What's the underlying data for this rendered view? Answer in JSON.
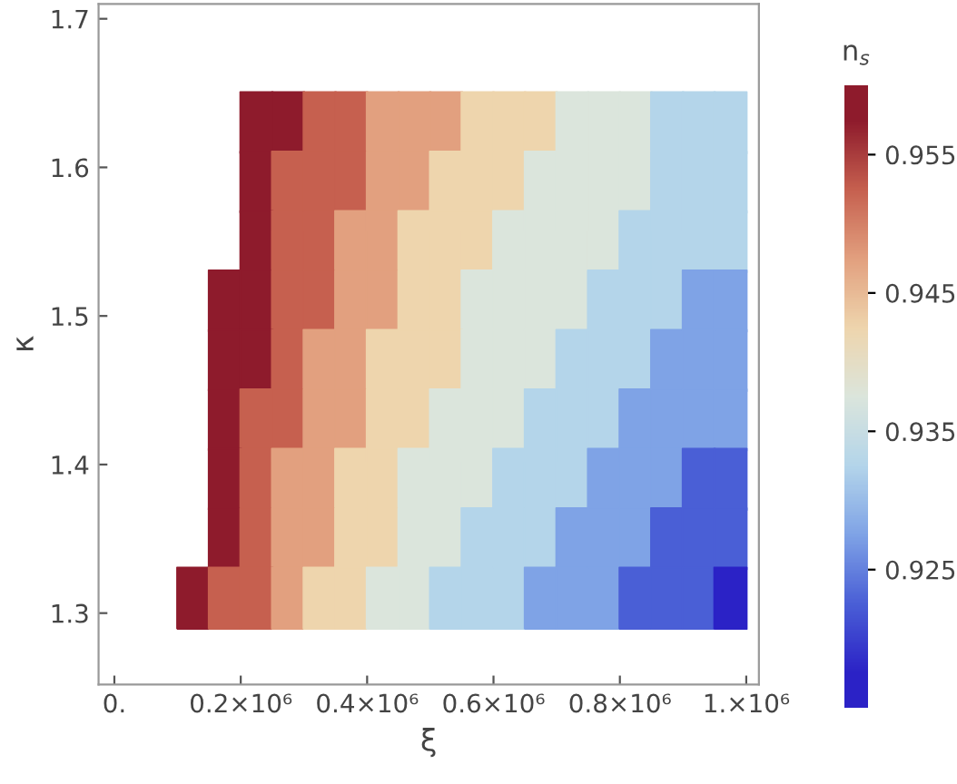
{
  "chart_data": {
    "type": "scatter",
    "marker": "square",
    "xlabel": "ξ",
    "ylabel": "κ",
    "clabel": "n$_{s}$",
    "series": [
      {
        "x": [
          225000,
          275000,
          325000,
          375000,
          425000,
          475000,
          525000,
          575000,
          625000,
          675000,
          725000,
          775000,
          825000,
          875000,
          925000,
          975000
        ],
        "values": [
          1.63,
          1.63,
          1.63,
          1.63,
          1.63,
          1.63,
          1.63,
          1.63,
          1.63,
          1.63,
          1.63,
          1.63,
          1.63,
          1.63,
          1.63,
          1.63
        ],
        "cvalues": [
          0.9575,
          0.9575,
          0.9525,
          0.9525,
          0.9475,
          0.9475,
          0.9475,
          0.9425,
          0.9425,
          0.9425,
          0.9375,
          0.9375,
          0.9375,
          0.9325,
          0.9325,
          0.9325
        ],
        "colors": [
          "#8e1b2c",
          "#8e1b2c",
          "#c6604f",
          "#c6604f",
          "#e2a07f",
          "#e2a07f",
          "#e2a07f",
          "#eed5ad",
          "#eed5ad",
          "#eed5ad",
          "#dbe5dc",
          "#dbe5dc",
          "#dbe5dc",
          "#b4d5ea",
          "#b4d5ea",
          "#b4d5ea"
        ]
      },
      {
        "x": [
          225000,
          275000,
          325000,
          375000,
          425000,
          475000,
          525000,
          575000,
          625000,
          675000,
          725000,
          775000,
          825000,
          875000,
          925000,
          975000
        ],
        "values": [
          1.59,
          1.59,
          1.59,
          1.59,
          1.59,
          1.59,
          1.59,
          1.59,
          1.59,
          1.59,
          1.59,
          1.59,
          1.59,
          1.59,
          1.59,
          1.59
        ],
        "cvalues": [
          0.9575,
          0.9525,
          0.9525,
          0.9525,
          0.9475,
          0.9475,
          0.9425,
          0.9425,
          0.9425,
          0.9375,
          0.9375,
          0.9375,
          0.9375,
          0.9325,
          0.9325,
          0.9325
        ],
        "colors": [
          "#8e1b2c",
          "#c6604f",
          "#c6604f",
          "#c6604f",
          "#e2a07f",
          "#e2a07f",
          "#eed5ad",
          "#eed5ad",
          "#eed5ad",
          "#dbe5dc",
          "#dbe5dc",
          "#dbe5dc",
          "#dbe5dc",
          "#b4d5ea",
          "#b4d5ea",
          "#b4d5ea"
        ]
      },
      {
        "x": [
          225000,
          275000,
          325000,
          375000,
          425000,
          475000,
          525000,
          575000,
          625000,
          675000,
          725000,
          775000,
          825000,
          875000,
          925000,
          975000
        ],
        "values": [
          1.55,
          1.55,
          1.55,
          1.55,
          1.55,
          1.55,
          1.55,
          1.55,
          1.55,
          1.55,
          1.55,
          1.55,
          1.55,
          1.55,
          1.55,
          1.55
        ],
        "cvalues": [
          0.9575,
          0.9525,
          0.9525,
          0.9475,
          0.9475,
          0.9425,
          0.9425,
          0.9425,
          0.9375,
          0.9375,
          0.9375,
          0.9375,
          0.9325,
          0.9325,
          0.9325,
          0.9325
        ],
        "colors": [
          "#8e1b2c",
          "#c6604f",
          "#c6604f",
          "#e2a07f",
          "#e2a07f",
          "#eed5ad",
          "#eed5ad",
          "#eed5ad",
          "#dbe5dc",
          "#dbe5dc",
          "#dbe5dc",
          "#dbe5dc",
          "#b4d5ea",
          "#b4d5ea",
          "#b4d5ea",
          "#b4d5ea"
        ]
      },
      {
        "x": [
          175000,
          225000,
          275000,
          325000,
          375000,
          425000,
          475000,
          525000,
          575000,
          625000,
          675000,
          725000,
          775000,
          825000,
          875000,
          925000,
          975000
        ],
        "values": [
          1.51,
          1.51,
          1.51,
          1.51,
          1.51,
          1.51,
          1.51,
          1.51,
          1.51,
          1.51,
          1.51,
          1.51,
          1.51,
          1.51,
          1.51,
          1.51,
          1.51
        ],
        "cvalues": [
          0.9575,
          0.9575,
          0.9525,
          0.9525,
          0.9475,
          0.9475,
          0.9425,
          0.9425,
          0.9375,
          0.9375,
          0.9375,
          0.9375,
          0.9325,
          0.9325,
          0.9325,
          0.9275,
          0.9275
        ],
        "colors": [
          "#8e1b2c",
          "#8e1b2c",
          "#c6604f",
          "#c6604f",
          "#e2a07f",
          "#e2a07f",
          "#eed5ad",
          "#eed5ad",
          "#dbe5dc",
          "#dbe5dc",
          "#dbe5dc",
          "#dbe5dc",
          "#b4d5ea",
          "#b4d5ea",
          "#b4d5ea",
          "#7fa3e6",
          "#7fa3e6"
        ]
      },
      {
        "x": [
          175000,
          225000,
          275000,
          325000,
          375000,
          425000,
          475000,
          525000,
          575000,
          625000,
          675000,
          725000,
          775000,
          825000,
          875000,
          925000,
          975000
        ],
        "values": [
          1.47,
          1.47,
          1.47,
          1.47,
          1.47,
          1.47,
          1.47,
          1.47,
          1.47,
          1.47,
          1.47,
          1.47,
          1.47,
          1.47,
          1.47,
          1.47,
          1.47
        ],
        "cvalues": [
          0.9575,
          0.9575,
          0.9525,
          0.9475,
          0.9475,
          0.9425,
          0.9425,
          0.9425,
          0.9375,
          0.9375,
          0.9375,
          0.9325,
          0.9325,
          0.9325,
          0.9275,
          0.9275,
          0.9275
        ],
        "colors": [
          "#8e1b2c",
          "#8e1b2c",
          "#c6604f",
          "#e2a07f",
          "#e2a07f",
          "#eed5ad",
          "#eed5ad",
          "#eed5ad",
          "#dbe5dc",
          "#dbe5dc",
          "#dbe5dc",
          "#b4d5ea",
          "#b4d5ea",
          "#b4d5ea",
          "#7fa3e6",
          "#7fa3e6",
          "#7fa3e6"
        ]
      },
      {
        "x": [
          175000,
          225000,
          275000,
          325000,
          375000,
          425000,
          475000,
          525000,
          575000,
          625000,
          675000,
          725000,
          775000,
          825000,
          875000,
          925000,
          975000
        ],
        "values": [
          1.43,
          1.43,
          1.43,
          1.43,
          1.43,
          1.43,
          1.43,
          1.43,
          1.43,
          1.43,
          1.43,
          1.43,
          1.43,
          1.43,
          1.43,
          1.43,
          1.43
        ],
        "cvalues": [
          0.9575,
          0.9525,
          0.9525,
          0.9475,
          0.9475,
          0.9425,
          0.9425,
          0.9375,
          0.9375,
          0.9375,
          0.9325,
          0.9325,
          0.9325,
          0.9275,
          0.9275,
          0.9275,
          0.9275
        ],
        "colors": [
          "#8e1b2c",
          "#c6604f",
          "#c6604f",
          "#e2a07f",
          "#e2a07f",
          "#eed5ad",
          "#eed5ad",
          "#dbe5dc",
          "#dbe5dc",
          "#dbe5dc",
          "#b4d5ea",
          "#b4d5ea",
          "#b4d5ea",
          "#7fa3e6",
          "#7fa3e6",
          "#7fa3e6",
          "#7fa3e6"
        ]
      },
      {
        "x": [
          175000,
          225000,
          275000,
          325000,
          375000,
          425000,
          475000,
          525000,
          575000,
          625000,
          675000,
          725000,
          775000,
          825000,
          875000,
          925000,
          975000
        ],
        "values": [
          1.39,
          1.39,
          1.39,
          1.39,
          1.39,
          1.39,
          1.39,
          1.39,
          1.39,
          1.39,
          1.39,
          1.39,
          1.39,
          1.39,
          1.39,
          1.39,
          1.39
        ],
        "cvalues": [
          0.9575,
          0.9525,
          0.9475,
          0.9475,
          0.9425,
          0.9425,
          0.9375,
          0.9375,
          0.9375,
          0.9325,
          0.9325,
          0.9325,
          0.9275,
          0.9275,
          0.9275,
          0.9225,
          0.9225
        ],
        "colors": [
          "#8e1b2c",
          "#c6604f",
          "#e2a07f",
          "#e2a07f",
          "#eed5ad",
          "#eed5ad",
          "#dbe5dc",
          "#dbe5dc",
          "#dbe5dc",
          "#b4d5ea",
          "#b4d5ea",
          "#b4d5ea",
          "#7fa3e6",
          "#7fa3e6",
          "#7fa3e6",
          "#4a5fd6",
          "#4a5fd6"
        ]
      },
      {
        "x": [
          175000,
          225000,
          275000,
          325000,
          375000,
          425000,
          475000,
          525000,
          575000,
          625000,
          675000,
          725000,
          775000,
          825000,
          875000,
          925000,
          975000
        ],
        "values": [
          1.35,
          1.35,
          1.35,
          1.35,
          1.35,
          1.35,
          1.35,
          1.35,
          1.35,
          1.35,
          1.35,
          1.35,
          1.35,
          1.35,
          1.35,
          1.35,
          1.35
        ],
        "cvalues": [
          0.9575,
          0.9525,
          0.9475,
          0.9475,
          0.9425,
          0.9425,
          0.9375,
          0.9375,
          0.9325,
          0.9325,
          0.9325,
          0.9275,
          0.9275,
          0.9275,
          0.9225,
          0.9225,
          0.9225
        ],
        "colors": [
          "#8e1b2c",
          "#c6604f",
          "#e2a07f",
          "#e2a07f",
          "#eed5ad",
          "#eed5ad",
          "#dbe5dc",
          "#dbe5dc",
          "#b4d5ea",
          "#b4d5ea",
          "#b4d5ea",
          "#7fa3e6",
          "#7fa3e6",
          "#7fa3e6",
          "#4a5fd6",
          "#4a5fd6",
          "#4a5fd6"
        ]
      },
      {
        "x": [
          125000,
          175000,
          225000,
          275000,
          325000,
          375000,
          425000,
          475000,
          525000,
          575000,
          625000,
          675000,
          725000,
          775000,
          825000,
          875000,
          925000,
          975000
        ],
        "values": [
          1.31,
          1.31,
          1.31,
          1.31,
          1.31,
          1.31,
          1.31,
          1.31,
          1.31,
          1.31,
          1.31,
          1.31,
          1.31,
          1.31,
          1.31,
          1.31,
          1.31,
          1.31
        ],
        "cvalues": [
          0.9575,
          0.9525,
          0.9525,
          0.9475,
          0.9425,
          0.9425,
          0.9375,
          0.9375,
          0.9325,
          0.9325,
          0.9325,
          0.9275,
          0.9275,
          0.9275,
          0.9225,
          0.9225,
          0.9225,
          0.9175
        ],
        "colors": [
          "#8e1b2c",
          "#c6604f",
          "#c6604f",
          "#e2a07f",
          "#eed5ad",
          "#eed5ad",
          "#dbe5dc",
          "#dbe5dc",
          "#b4d5ea",
          "#b4d5ea",
          "#b4d5ea",
          "#7fa3e6",
          "#7fa3e6",
          "#7fa3e6",
          "#4a5fd6",
          "#4a5fd6",
          "#4a5fd6",
          "#2b22c6"
        ]
      }
    ],
    "colors": [
      "#2b22c6",
      "#4a5fd6",
      "#7fa3e6",
      "#b4d5ea",
      "#dbe5dc",
      "#eed5ad",
      "#e2a07f",
      "#c6604f",
      "#8e1b2c"
    ],
    "clim": [
      0.915,
      0.96
    ],
    "cticks": [
      0.925,
      0.935,
      0.945,
      0.955
    ],
    "xlim": [
      -25000,
      1020000
    ],
    "xticks": [
      {
        "value": 0,
        "label": "0."
      },
      {
        "value": 200000,
        "label": "0.2×10⁶"
      },
      {
        "value": 400000,
        "label": "0.4×10⁶"
      },
      {
        "value": 600000,
        "label": "0.6×10⁶"
      },
      {
        "value": 800000,
        "label": "0.8×10⁶"
      },
      {
        "value": 1000000,
        "label": "1.×10⁶"
      }
    ],
    "ylim": [
      1.252,
      1.71
    ],
    "yticks": [
      1.3,
      1.4,
      1.5,
      1.6,
      1.7
    ],
    "grid": false
  }
}
